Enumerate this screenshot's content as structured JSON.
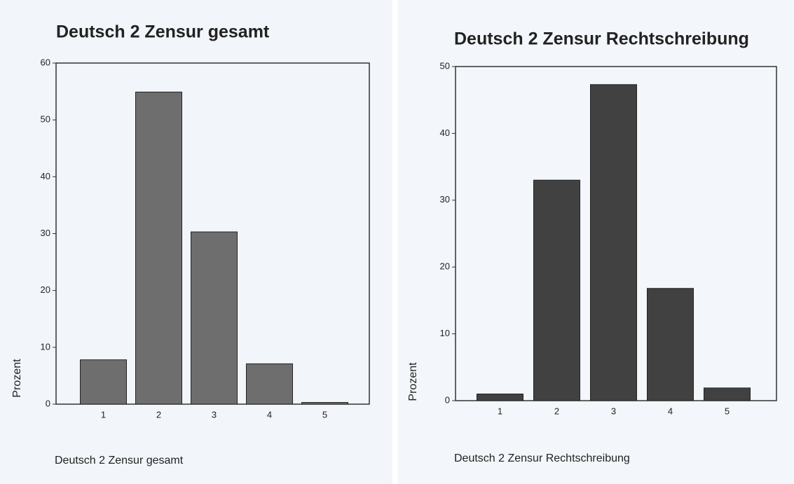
{
  "chart_data": [
    {
      "type": "bar",
      "title": "Deutsch 2 Zensur gesamt",
      "x_label": "Deutsch 2 Zensur gesamt",
      "y_label": "Prozent",
      "categories": [
        "1",
        "2",
        "3",
        "4",
        "5"
      ],
      "values": [
        7.8,
        54.9,
        30.3,
        7.1,
        0.3
      ],
      "color": "#6e6e6e",
      "ylim": [
        0,
        60
      ],
      "yticks": [
        0,
        10,
        20,
        30,
        40,
        50,
        60
      ],
      "grid": false
    },
    {
      "type": "bar",
      "title": "Deutsch 2 Zensur Rechtschreibung",
      "x_label": "Deutsch 2 Zensur Rechtschreibung",
      "y_label": "Prozent",
      "categories": [
        "1",
        "2",
        "3",
        "4",
        "5"
      ],
      "values": [
        1.0,
        33.0,
        47.3,
        16.8,
        1.9
      ],
      "color": "#414141",
      "ylim": [
        0,
        50
      ],
      "yticks": [
        0,
        10,
        20,
        30,
        40,
        50
      ],
      "grid": false
    }
  ]
}
